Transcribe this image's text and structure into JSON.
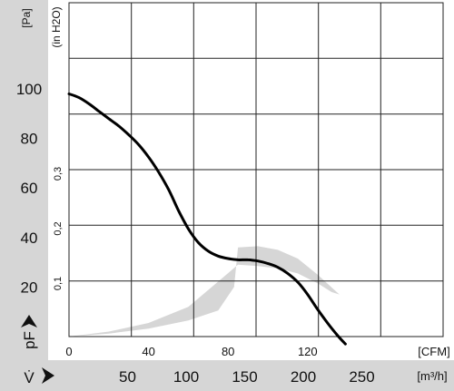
{
  "chart_data": {
    "type": "line",
    "left_axis": {
      "unit": "[Pa]",
      "ticks": [
        "100",
        "80",
        "60",
        "40",
        "20"
      ],
      "tick_values": [
        100,
        80,
        60,
        40,
        20
      ],
      "label": "pF",
      "range": [
        0,
        100
      ]
    },
    "secondary_axis": {
      "unit": "(in H2O)",
      "ticks": [
        "0,3",
        "0,2",
        "0,1"
      ],
      "tick_values": [
        0.3,
        0.2,
        0.1
      ]
    },
    "x_axis_cfm": {
      "unit": "[CFM]",
      "ticks": [
        "0",
        "40",
        "80",
        "120"
      ],
      "tick_values": [
        0,
        40,
        80,
        120
      ],
      "range": [
        0,
        160
      ]
    },
    "x_axis_m3h": {
      "unit": "[m³/h]",
      "label": "V̇",
      "ticks": [
        "50",
        "100",
        "150",
        "200",
        "250"
      ],
      "tick_values": [
        50,
        100,
        150,
        200,
        250
      ]
    },
    "grid": true,
    "series": [
      {
        "x": [
          0,
          5,
          10,
          15,
          20,
          25,
          30,
          35,
          40,
          45,
          50,
          55,
          60,
          65,
          70,
          75,
          80,
          85,
          90,
          95,
          100,
          105,
          110,
          115,
          120,
          125,
          130,
          135,
          139
        ],
        "y": [
          98,
          96.5,
          94,
          91,
          88,
          85,
          81.5,
          77.5,
          72.5,
          66.5,
          59.5,
          51,
          43.5,
          38,
          34.5,
          32.5,
          31.5,
          31,
          31,
          30.5,
          29.5,
          28,
          25.5,
          22,
          17,
          11,
          5.5,
          0.5,
          -3
        ]
      }
    ],
    "operating_range": {
      "x": [
        0,
        20,
        40,
        60,
        75,
        83,
        85,
        95,
        105,
        115,
        125,
        136,
        132,
        125,
        115,
        105,
        95,
        85,
        60,
        40,
        20,
        0
      ],
      "y": [
        0,
        1.2,
        3.2,
        6.5,
        10.5,
        20,
        36,
        36.5,
        35,
        31.5,
        25,
        17,
        18,
        21.5,
        25.5,
        27.5,
        28.5,
        29,
        12,
        5.5,
        2,
        0
      ]
    }
  }
}
